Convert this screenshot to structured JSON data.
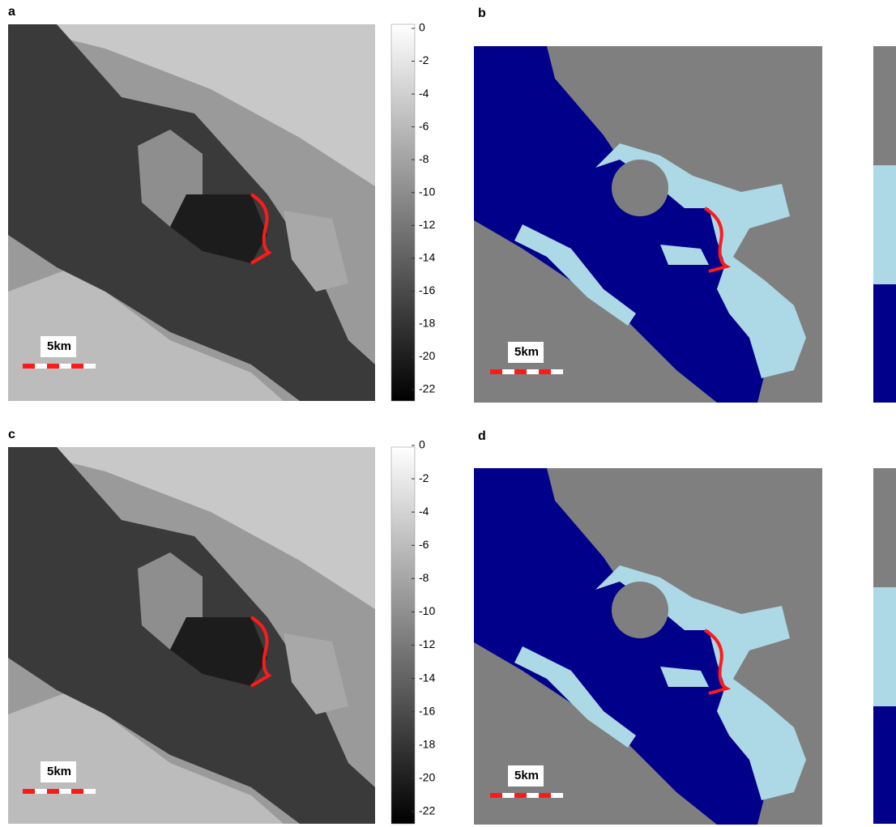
{
  "panels": [
    {
      "label": "a",
      "scale_label": "5km",
      "colorbar_ticks": [
        0,
        -2,
        -4,
        -6,
        -8,
        -10,
        -12,
        -14,
        -16,
        -18,
        -20,
        -22
      ]
    },
    {
      "label": "b",
      "scale_label": "5km"
    },
    {
      "label": "c",
      "scale_label": "5km",
      "colorbar_ticks": [
        0,
        -2,
        -4,
        -6,
        -8,
        -10,
        -12,
        -14,
        -16,
        -18,
        -20,
        -22
      ]
    },
    {
      "label": "d",
      "scale_label": "5km"
    }
  ]
}
